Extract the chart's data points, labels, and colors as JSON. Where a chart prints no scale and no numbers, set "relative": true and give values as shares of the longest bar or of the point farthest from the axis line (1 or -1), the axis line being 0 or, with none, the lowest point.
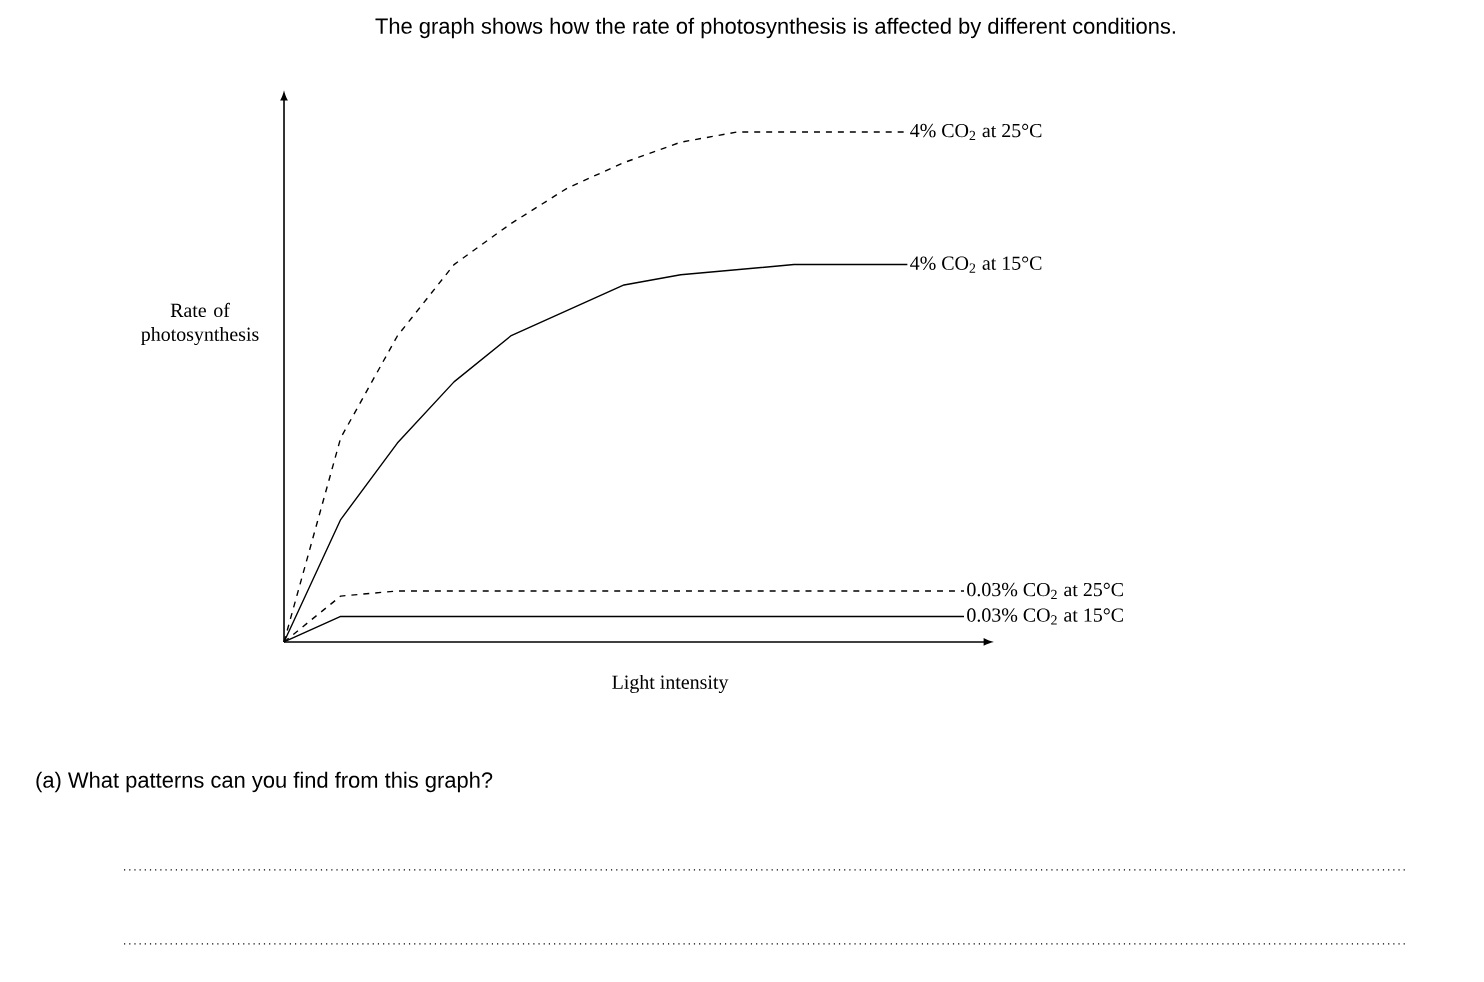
{
  "chart_data": {
    "type": "line",
    "relative": true,
    "title": "The graph shows how the rate of photosynthesis is affected by different conditions.",
    "xlabel": "Light intensity",
    "ylabel": "Rate of photosynthesis",
    "categories": [
      null,
      null,
      null,
      null,
      null,
      null,
      null,
      null,
      null,
      null,
      null,
      null,
      null
    ],
    "series": [
      {
        "name": "4% CO$_{2}$ at 25°C",
        "color": "#000000",
        "line_style": "dashed",
        "values": [
          0,
          0.4,
          0.6,
          0.74,
          0.82,
          0.89,
          0.94,
          0.98,
          1.0,
          1.0,
          1.0,
          1.0,
          null
        ]
      },
      {
        "name": "4% CO$_{2}$ at 15°C",
        "color": "#000000",
        "line_style": "solid",
        "values": [
          0,
          0.24,
          0.39,
          0.51,
          0.6,
          0.65,
          0.7,
          0.72,
          0.73,
          0.74,
          0.74,
          0.74,
          null
        ]
      },
      {
        "name": "0.03% CO$_{2}$ at 25°C",
        "color": "#000000",
        "line_style": "dashed",
        "values": [
          0,
          0.09,
          0.1,
          0.1,
          0.1,
          0.1,
          0.1,
          0.1,
          0.1,
          0.1,
          0.1,
          0.1,
          0.1
        ]
      },
      {
        "name": "0.03% CO$_{2}$ at 15°C",
        "color": "#000000",
        "line_style": "solid",
        "values": [
          0,
          0.05,
          0.05,
          0.05,
          0.05,
          0.05,
          0.05,
          0.05,
          0.05,
          0.05,
          0.05,
          0.05,
          0.05
        ]
      }
    ],
    "annotations": [
      "(a) What patterns can you find from this graph?"
    ]
  }
}
